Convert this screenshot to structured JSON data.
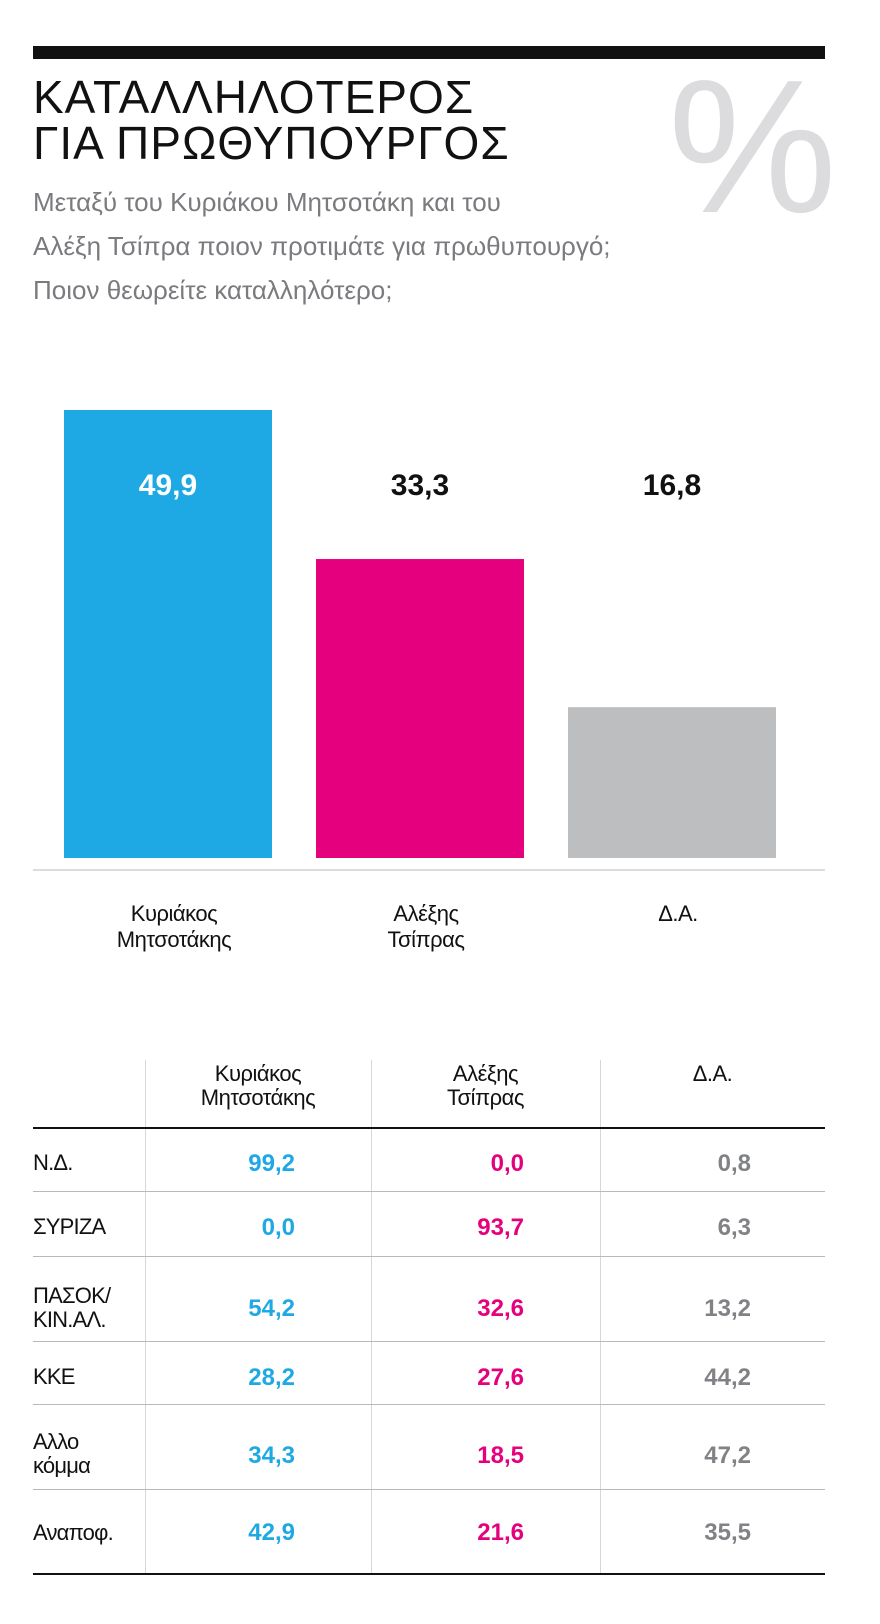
{
  "header": {
    "title_lines": [
      "ΚΑΤΑΛΛΗΛΟΤΕΡΟΣ",
      "ΓΙΑ ΠΡΩΘΥΠΟΥΡΓΟΣ"
    ],
    "percent_symbol": "%",
    "subtitle_lines": [
      "Μεταξύ του Κυριάκου Μητσοτάκη και του",
      "Αλέξη Τσίπρα ποιον προτιμάτε για πρωθυπουργό;",
      "Ποιον θεωρείτε καταλληλότερο;"
    ]
  },
  "chart_data": {
    "type": "bar",
    "title": "ΚΑΤΑΛΛΗΛΟΤΕΡΟΣ ΓΙΑ ΠΡΩΘΥΠΟΥΡΓΟΣ",
    "categories": [
      "Κυριάκος Μητσοτάκης",
      "Αλέξης Τσίπρας",
      "Δ.Α."
    ],
    "category_lines": [
      [
        "Κυριάκος",
        "Μητσοτάκης"
      ],
      [
        "Αλέξης",
        "Τσίπρας"
      ],
      [
        "Δ.Α."
      ]
    ],
    "values": [
      49.9,
      33.3,
      16.8
    ],
    "value_labels": [
      "49,9",
      "33,3",
      "16,8"
    ],
    "colors": [
      "#1fa9e4",
      "#e5007e",
      "#bcbec0"
    ],
    "label_colors": [
      "#ffffff",
      "#111111",
      "#111111"
    ],
    "ylim": [
      0,
      49.9
    ],
    "xlabel": "",
    "ylabel": "",
    "grid": false,
    "legend": "none"
  },
  "table": {
    "columns": [
      [
        "Κυριάκος",
        "Μητσοτάκης"
      ],
      [
        "Αλέξης",
        "Τσίπρας"
      ],
      [
        "Δ.Α."
      ]
    ],
    "rows": [
      {
        "label_lines": [
          "Ν.Δ."
        ],
        "values": [
          "99,2",
          "0,0",
          "0,8"
        ]
      },
      {
        "label_lines": [
          "ΣΥΡΙΖΑ"
        ],
        "values": [
          "0,0",
          "93,7",
          "6,3"
        ]
      },
      {
        "label_lines": [
          "ΠΑΣΟΚ/",
          "ΚΙΝ.ΑΛ."
        ],
        "values": [
          "54,2",
          "32,6",
          "13,2"
        ]
      },
      {
        "label_lines": [
          "ΚΚΕ"
        ],
        "values": [
          "28,2",
          "27,6",
          "44,2"
        ]
      },
      {
        "label_lines": [
          "Αλλο",
          "κόμμα"
        ],
        "values": [
          "34,3",
          "18,5",
          "47,2"
        ]
      },
      {
        "label_lines": [
          "Αναποφ."
        ],
        "values": [
          "42,9",
          "21,6",
          "35,5"
        ]
      }
    ],
    "colors": {
      "col1": "#1fa9e4",
      "col2": "#e5007e",
      "col3": "#808285"
    }
  }
}
